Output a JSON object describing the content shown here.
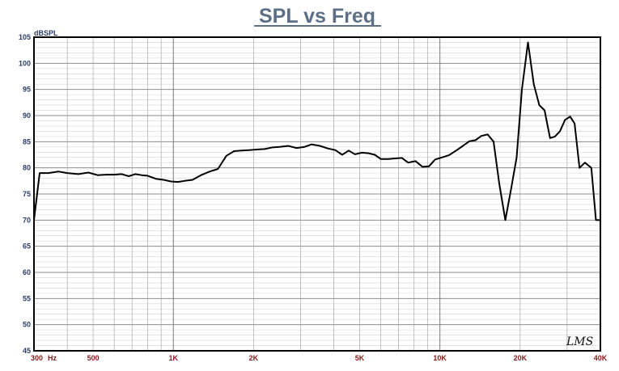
{
  "chart_data": {
    "type": "line",
    "title": "SPL vs Freq",
    "ylabel": "dBSPL",
    "xlabel": "",
    "xscale": "log",
    "xlim": [
      300,
      40000
    ],
    "ylim": [
      45,
      105
    ],
    "grid": true,
    "yticks": [
      105,
      100,
      95,
      90,
      85,
      80,
      75,
      70,
      65,
      60,
      55,
      50,
      45
    ],
    "yticks_labels": [
      "105",
      "100",
      "95",
      "90",
      "85",
      "80",
      "75",
      "70",
      "65",
      "60",
      "55",
      "50",
      "45"
    ],
    "xticks": [
      {
        "value": 300,
        "label": "300"
      },
      {
        "value": 500,
        "label": "500"
      },
      {
        "value": 1000,
        "label": "1K"
      },
      {
        "value": 2000,
        "label": "2K"
      },
      {
        "value": 5000,
        "label": "5K"
      },
      {
        "value": 10000,
        "label": "10K"
      },
      {
        "value": 20000,
        "label": "20K"
      },
      {
        "value": 40000,
        "label": "40K"
      }
    ],
    "x_unit": "Hz",
    "series": [
      {
        "color": "#000000",
        "x": [
          300,
          315,
          340,
          370,
          400,
          440,
          480,
          520,
          560,
          600,
          640,
          680,
          720,
          760,
          800,
          860,
          920,
          980,
          1040,
          1100,
          1180,
          1270,
          1370,
          1470,
          1580,
          1690,
          1800,
          1920,
          2050,
          2200,
          2350,
          2500,
          2700,
          2900,
          3100,
          3300,
          3550,
          3800,
          4050,
          4300,
          4550,
          4800,
          5100,
          5400,
          5700,
          6000,
          6400,
          6800,
          7200,
          7600,
          8100,
          8600,
          9100,
          9600,
          10200,
          10800,
          11500,
          12200,
          12900,
          13600,
          14300,
          15100,
          15900,
          16700,
          17600,
          18500,
          19400,
          20300,
          21400,
          22500,
          23600,
          24700,
          25900,
          27000,
          28200,
          29500,
          30800,
          32000,
          33400,
          35000,
          37000,
          38500,
          40000
        ],
        "y": [
          70,
          79,
          79,
          79.3,
          79,
          78.8,
          79.1,
          78.6,
          78.7,
          78.7,
          78.8,
          78.4,
          78.8,
          78.6,
          78.5,
          77.9,
          77.7,
          77.4,
          77.3,
          77.5,
          77.7,
          78.6,
          79.3,
          79.8,
          82.3,
          83.2,
          83.3,
          83.4,
          83.5,
          83.6,
          83.9,
          84,
          84.2,
          83.8,
          84,
          84.5,
          84.2,
          83.7,
          83.4,
          82.5,
          83.3,
          82.6,
          82.9,
          82.8,
          82.5,
          81.7,
          81.7,
          81.8,
          81.9,
          81,
          81.3,
          80.2,
          80.3,
          81.6,
          82,
          82.4,
          83.3,
          84.2,
          85.1,
          85.3,
          86.1,
          86.4,
          85,
          77,
          70,
          76,
          82,
          95,
          104,
          96,
          92,
          91,
          85.7,
          86,
          87,
          89.2,
          89.8,
          88.5,
          80,
          81,
          80,
          70,
          70
        ]
      }
    ]
  },
  "logo_text": "LMS"
}
